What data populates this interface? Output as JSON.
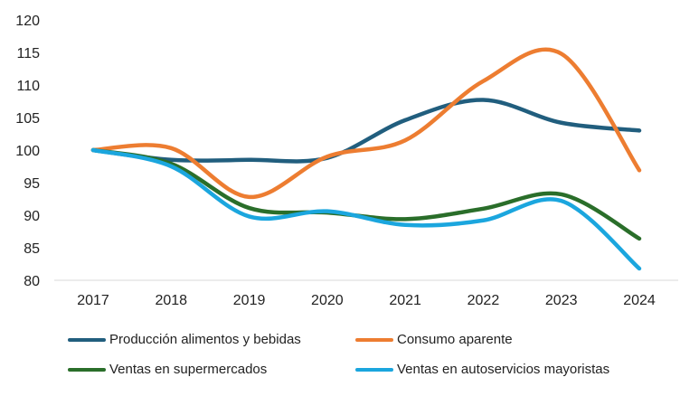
{
  "chart_data": {
    "type": "line",
    "title": "",
    "xlabel": "",
    "ylabel": "",
    "x": [
      "2017",
      "2018",
      "2019",
      "2020",
      "2021",
      "2022",
      "2023",
      "2024"
    ],
    "ylim": [
      80,
      120
    ],
    "yticks": [
      80,
      85,
      90,
      95,
      100,
      105,
      110,
      115,
      120
    ],
    "grid": false,
    "legend_position": "bottom",
    "series": [
      {
        "name": "Producción alimentos y bebidas",
        "color": "#215E7E",
        "values": [
          100,
          98.5,
          98.5,
          98.8,
          104.6,
          107.7,
          104.2,
          103.0
        ]
      },
      {
        "name": "Consumo aparente",
        "color": "#ED7D31",
        "values": [
          100,
          100.3,
          92.8,
          99.0,
          101.5,
          110.6,
          114.8,
          96.9
        ]
      },
      {
        "name": "Ventas en supermercados",
        "color": "#2A6E2A",
        "values": [
          100,
          97.9,
          91.1,
          90.4,
          89.4,
          91.0,
          93.2,
          86.4
        ]
      },
      {
        "name": "Ventas en autoservicios mayoristas",
        "color": "#1BA6DE",
        "values": [
          100,
          97.5,
          89.8,
          90.6,
          88.5,
          89.2,
          92.2,
          81.8
        ]
      }
    ]
  }
}
